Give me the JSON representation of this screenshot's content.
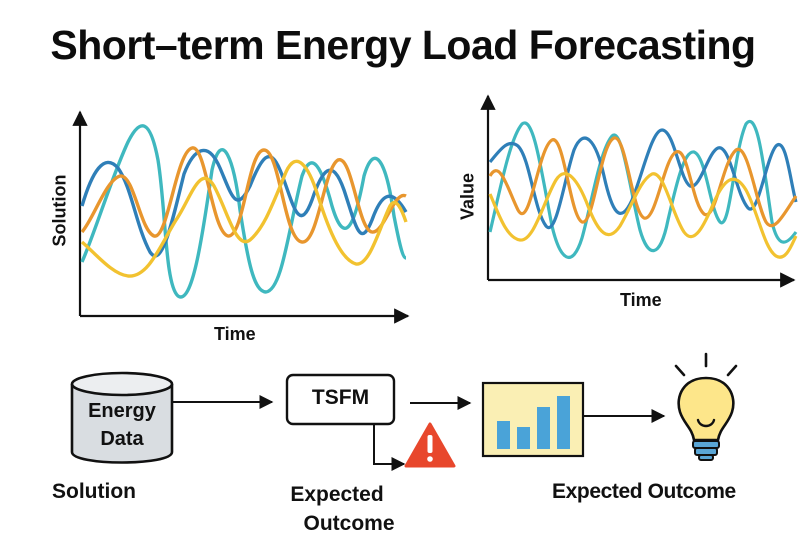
{
  "title": "Short–term Energy Load Forecasting",
  "charts": {
    "left": {
      "ylabel": "Solution",
      "xlabel": "Time"
    },
    "right": {
      "ylabel": "Value",
      "xlabel": "Time"
    }
  },
  "flow": {
    "database_label_line1": "Energy",
    "database_label_line2": "Data",
    "model_label": "TSFM",
    "left_caption": "Solution",
    "middle_caption_line1": "Expected",
    "middle_caption_line2": "Outcome",
    "right_caption": "Expected Outcome"
  },
  "colors": {
    "series_blue": "#2f7fb8",
    "series_teal": "#3fb8bf",
    "series_orange": "#e8962e",
    "series_yellow": "#f2c230",
    "warning": "#e8472c",
    "bar_panel": "#faefb4",
    "bars": "#4aa3d8",
    "bulb": "#fde68a",
    "bulb_base": "#5aa6d6",
    "database": "#d9dde1"
  },
  "icons": [
    "database-icon",
    "warning-icon",
    "bar-chart-icon",
    "lightbulb-icon"
  ]
}
